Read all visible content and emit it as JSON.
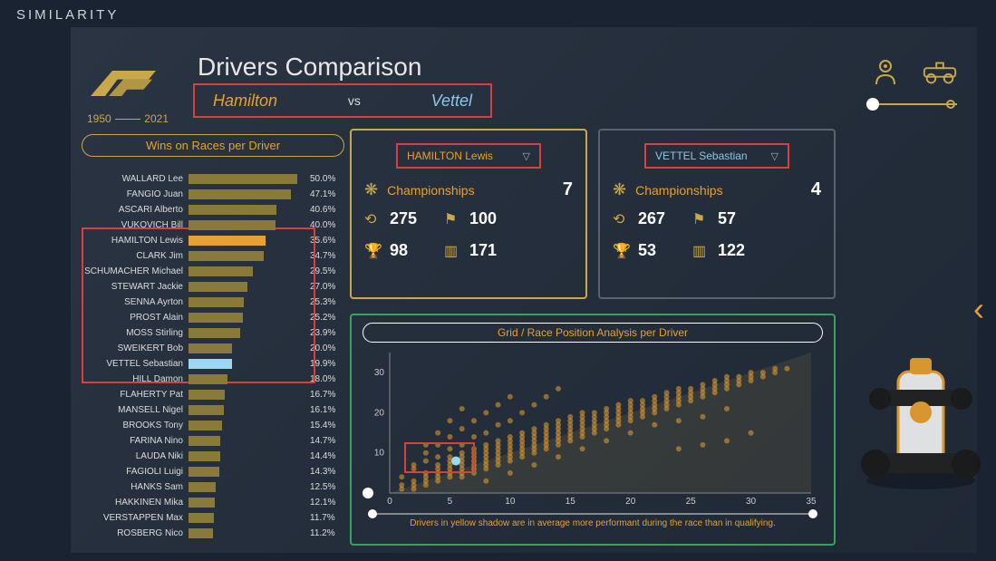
{
  "watermark": "SIMILARITY",
  "logo": {
    "year_start": "1950",
    "year_end": "2021"
  },
  "header": {
    "title": "Drivers Comparison",
    "driver1": "Hamilton",
    "vs": "vs",
    "driver2": "Vettel"
  },
  "colors": {
    "gold": "#c9a84a",
    "orange": "#e8a030",
    "cyan": "#88c8e8",
    "red": "#d84040",
    "green": "#3aa060",
    "bar_default": "#8a7a3a",
    "bar_highlight_orange": "#e8a030",
    "bar_highlight_cyan": "#9dd8f0",
    "bg": "#1a2332",
    "text": "#e8e8e8"
  },
  "bar_chart": {
    "title": "Wins on Races per Driver",
    "max_pct": 50.0,
    "rows": [
      {
        "name": "WALLARD Lee",
        "pct": 50.0,
        "color": "#8a7a3a"
      },
      {
        "name": "FANGIO Juan",
        "pct": 47.1,
        "color": "#8a7a3a"
      },
      {
        "name": "ASCARI Alberto",
        "pct": 40.6,
        "color": "#8a7a3a"
      },
      {
        "name": "VUKOVICH Bill",
        "pct": 40.0,
        "color": "#8a7a3a"
      },
      {
        "name": "HAMILTON Lewis",
        "pct": 35.6,
        "color": "#e8a030"
      },
      {
        "name": "CLARK Jim",
        "pct": 34.7,
        "color": "#8a7a3a"
      },
      {
        "name": "SCHUMACHER Michael",
        "pct": 29.5,
        "color": "#8a7a3a"
      },
      {
        "name": "STEWART Jackie",
        "pct": 27.0,
        "color": "#8a7a3a"
      },
      {
        "name": "SENNA Ayrton",
        "pct": 25.3,
        "color": "#8a7a3a"
      },
      {
        "name": "PROST Alain",
        "pct": 25.2,
        "color": "#8a7a3a"
      },
      {
        "name": "MOSS Stirling",
        "pct": 23.9,
        "color": "#8a7a3a"
      },
      {
        "name": "SWEIKERT Bob",
        "pct": 20.0,
        "color": "#8a7a3a"
      },
      {
        "name": "VETTEL Sebastian",
        "pct": 19.9,
        "color": "#9dd8f0"
      },
      {
        "name": "HILL Damon",
        "pct": 18.0,
        "color": "#8a7a3a"
      },
      {
        "name": "FLAHERTY Pat",
        "pct": 16.7,
        "color": "#8a7a3a"
      },
      {
        "name": "MANSELL Nigel",
        "pct": 16.1,
        "color": "#8a7a3a"
      },
      {
        "name": "BROOKS Tony",
        "pct": 15.4,
        "color": "#8a7a3a"
      },
      {
        "name": "FARINA Nino",
        "pct": 14.7,
        "color": "#8a7a3a"
      },
      {
        "name": "LAUDA Niki",
        "pct": 14.4,
        "color": "#8a7a3a"
      },
      {
        "name": "FAGIOLI Luigi",
        "pct": 14.3,
        "color": "#8a7a3a"
      },
      {
        "name": "HANKS Sam",
        "pct": 12.5,
        "color": "#8a7a3a"
      },
      {
        "name": "HAKKINEN Mika",
        "pct": 12.1,
        "color": "#8a7a3a"
      },
      {
        "name": "VERSTAPPEN Max",
        "pct": 11.7,
        "color": "#8a7a3a"
      },
      {
        "name": "ROSBERG Nico",
        "pct": 11.2,
        "color": "#8a7a3a"
      }
    ]
  },
  "card_left": {
    "select_label": "HAMILTON Lewis",
    "championships_label": "Championships",
    "championships": "7",
    "races": "275",
    "wins": "100",
    "poles": "98",
    "podiums": "171"
  },
  "card_right": {
    "select_label": "VETTEL Sebastian",
    "championships_label": "Championships",
    "championships": "4",
    "races": "267",
    "wins": "57",
    "poles": "53",
    "podiums": "122"
  },
  "scatter": {
    "title": "Grid / Race Position Analysis per Driver",
    "footnote": "Drivers in yellow shadow are in average more performant during the race than in qualifying.",
    "xlim": [
      0,
      35
    ],
    "ylim": [
      0,
      35
    ],
    "xticks": [
      0,
      5,
      10,
      15,
      20,
      25,
      30,
      35
    ],
    "yticks": [
      10,
      20,
      30
    ],
    "point_color": "#e8a030",
    "point_radius": 3,
    "point_opacity": 0.55,
    "highlight_point": {
      "x": 5.5,
      "y": 8,
      "color": "#9dd8f0"
    },
    "points": [
      [
        1,
        1
      ],
      [
        1,
        2
      ],
      [
        2,
        1
      ],
      [
        2,
        2
      ],
      [
        2,
        3
      ],
      [
        3,
        2
      ],
      [
        3,
        3
      ],
      [
        3,
        4
      ],
      [
        3,
        5
      ],
      [
        4,
        3
      ],
      [
        4,
        4
      ],
      [
        4,
        5
      ],
      [
        4,
        6
      ],
      [
        4,
        7
      ],
      [
        5,
        4
      ],
      [
        5,
        5
      ],
      [
        5,
        6
      ],
      [
        5,
        7
      ],
      [
        5,
        8
      ],
      [
        5,
        9
      ],
      [
        6,
        4
      ],
      [
        6,
        5
      ],
      [
        6,
        6
      ],
      [
        6,
        7
      ],
      [
        6,
        8
      ],
      [
        6,
        9
      ],
      [
        6,
        10
      ],
      [
        7,
        5
      ],
      [
        7,
        6
      ],
      [
        7,
        7
      ],
      [
        7,
        8
      ],
      [
        7,
        9
      ],
      [
        7,
        10
      ],
      [
        7,
        11
      ],
      [
        8,
        6
      ],
      [
        8,
        7
      ],
      [
        8,
        8
      ],
      [
        8,
        9
      ],
      [
        8,
        10
      ],
      [
        8,
        11
      ],
      [
        8,
        12
      ],
      [
        9,
        7
      ],
      [
        9,
        8
      ],
      [
        9,
        9
      ],
      [
        9,
        10
      ],
      [
        9,
        11
      ],
      [
        9,
        12
      ],
      [
        9,
        13
      ],
      [
        10,
        8
      ],
      [
        10,
        9
      ],
      [
        10,
        10
      ],
      [
        10,
        11
      ],
      [
        10,
        12
      ],
      [
        10,
        13
      ],
      [
        10,
        14
      ],
      [
        11,
        9
      ],
      [
        11,
        10
      ],
      [
        11,
        11
      ],
      [
        11,
        12
      ],
      [
        11,
        13
      ],
      [
        11,
        14
      ],
      [
        11,
        15
      ],
      [
        12,
        10
      ],
      [
        12,
        11
      ],
      [
        12,
        12
      ],
      [
        12,
        13
      ],
      [
        12,
        14
      ],
      [
        12,
        15
      ],
      [
        12,
        16
      ],
      [
        13,
        11
      ],
      [
        13,
        12
      ],
      [
        13,
        13
      ],
      [
        13,
        14
      ],
      [
        13,
        15
      ],
      [
        13,
        16
      ],
      [
        13,
        17
      ],
      [
        14,
        12
      ],
      [
        14,
        13
      ],
      [
        14,
        14
      ],
      [
        14,
        15
      ],
      [
        14,
        16
      ],
      [
        14,
        17
      ],
      [
        14,
        18
      ],
      [
        15,
        13
      ],
      [
        15,
        14
      ],
      [
        15,
        15
      ],
      [
        15,
        16
      ],
      [
        15,
        17
      ],
      [
        15,
        18
      ],
      [
        15,
        19
      ],
      [
        16,
        14
      ],
      [
        16,
        15
      ],
      [
        16,
        16
      ],
      [
        16,
        17
      ],
      [
        16,
        18
      ],
      [
        16,
        19
      ],
      [
        16,
        20
      ],
      [
        17,
        15
      ],
      [
        17,
        16
      ],
      [
        17,
        17
      ],
      [
        17,
        18
      ],
      [
        17,
        19
      ],
      [
        17,
        20
      ],
      [
        18,
        16
      ],
      [
        18,
        17
      ],
      [
        18,
        18
      ],
      [
        18,
        19
      ],
      [
        18,
        20
      ],
      [
        18,
        21
      ],
      [
        19,
        17
      ],
      [
        19,
        18
      ],
      [
        19,
        19
      ],
      [
        19,
        20
      ],
      [
        19,
        21
      ],
      [
        19,
        22
      ],
      [
        20,
        18
      ],
      [
        20,
        19
      ],
      [
        20,
        20
      ],
      [
        20,
        21
      ],
      [
        20,
        22
      ],
      [
        20,
        23
      ],
      [
        21,
        19
      ],
      [
        21,
        20
      ],
      [
        21,
        21
      ],
      [
        21,
        22
      ],
      [
        21,
        23
      ],
      [
        22,
        20
      ],
      [
        22,
        21
      ],
      [
        22,
        22
      ],
      [
        22,
        23
      ],
      [
        22,
        24
      ],
      [
        23,
        21
      ],
      [
        23,
        22
      ],
      [
        23,
        23
      ],
      [
        23,
        24
      ],
      [
        23,
        25
      ],
      [
        24,
        22
      ],
      [
        24,
        23
      ],
      [
        24,
        24
      ],
      [
        24,
        25
      ],
      [
        24,
        26
      ],
      [
        25,
        23
      ],
      [
        25,
        24
      ],
      [
        25,
        25
      ],
      [
        25,
        26
      ],
      [
        26,
        24
      ],
      [
        26,
        25
      ],
      [
        26,
        26
      ],
      [
        26,
        27
      ],
      [
        27,
        25
      ],
      [
        27,
        26
      ],
      [
        27,
        27
      ],
      [
        27,
        28
      ],
      [
        28,
        26
      ],
      [
        28,
        27
      ],
      [
        28,
        28
      ],
      [
        28,
        29
      ],
      [
        29,
        27
      ],
      [
        29,
        28
      ],
      [
        29,
        29
      ],
      [
        30,
        28
      ],
      [
        30,
        29
      ],
      [
        30,
        30
      ],
      [
        31,
        29
      ],
      [
        31,
        30
      ],
      [
        32,
        30
      ],
      [
        32,
        31
      ],
      [
        33,
        31
      ],
      [
        3,
        8
      ],
      [
        4,
        9
      ],
      [
        5,
        11
      ],
      [
        6,
        12
      ],
      [
        7,
        14
      ],
      [
        8,
        15
      ],
      [
        9,
        17
      ],
      [
        10,
        18
      ],
      [
        11,
        20
      ],
      [
        12,
        22
      ],
      [
        13,
        24
      ],
      [
        14,
        26
      ],
      [
        2,
        6
      ],
      [
        3,
        10
      ],
      [
        4,
        12
      ],
      [
        5,
        14
      ],
      [
        6,
        16
      ],
      [
        7,
        18
      ],
      [
        8,
        20
      ],
      [
        9,
        22
      ],
      [
        10,
        24
      ],
      [
        8,
        3
      ],
      [
        10,
        5
      ],
      [
        12,
        7
      ],
      [
        14,
        9
      ],
      [
        16,
        11
      ],
      [
        18,
        13
      ],
      [
        20,
        15
      ],
      [
        22,
        17
      ],
      [
        24,
        18
      ],
      [
        26,
        19
      ],
      [
        28,
        21
      ],
      [
        1,
        4
      ],
      [
        2,
        7
      ],
      [
        3,
        12
      ],
      [
        4,
        15
      ],
      [
        5,
        18
      ],
      [
        6,
        21
      ],
      [
        30,
        15
      ],
      [
        28,
        13
      ],
      [
        26,
        12
      ],
      [
        24,
        11
      ]
    ]
  }
}
